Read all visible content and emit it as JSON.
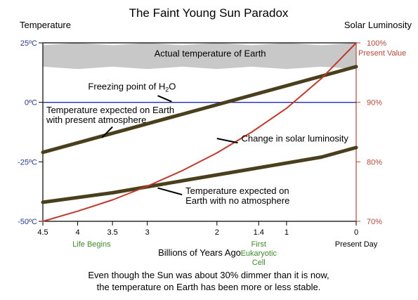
{
  "chart_data": {
    "type": "line",
    "title": "The Faint Young Sun Paradox",
    "ylabel_left": "Temperature",
    "ylabel_right": "Solar Luminosity",
    "xlabel": "Billions of Years Ago",
    "x_range": [
      4.5,
      0
    ],
    "y_left_range": [
      -50,
      25
    ],
    "y_right_range": [
      70,
      100
    ],
    "x_ticks": [
      {
        "value": 4.5,
        "label": "4.5"
      },
      {
        "value": 4,
        "label": "4"
      },
      {
        "value": 3.5,
        "label": "3.5"
      },
      {
        "value": 3,
        "label": "3"
      },
      {
        "value": 2,
        "label": "2"
      },
      {
        "value": 1.4,
        "label": "1.4"
      },
      {
        "value": 1,
        "label": "1"
      },
      {
        "value": 0,
        "label": "0"
      }
    ],
    "x_tick_extra": [
      {
        "value": 0,
        "label": "Present Day"
      }
    ],
    "y_left_ticks": [
      {
        "value": 25,
        "label": "25ºC"
      },
      {
        "value": 0,
        "label": "0ºC"
      },
      {
        "value": -25,
        "label": "-25ºC"
      },
      {
        "value": -50,
        "label": "-50ºC"
      }
    ],
    "y_right_ticks": [
      {
        "value": 100,
        "label": "100%"
      },
      {
        "value": 90,
        "label": "90%"
      },
      {
        "value": 80,
        "label": "80%"
      },
      {
        "value": 70,
        "label": "70%"
      }
    ],
    "right_axis_note": "Present Value",
    "milestones": [
      {
        "x": 3.8,
        "lines": [
          "Life Begins"
        ]
      },
      {
        "x": 1.4,
        "lines": [
          "First",
          "Eukaryotic",
          "Cell"
        ]
      }
    ],
    "freezing_line_value": 0,
    "actual_temp_band": {
      "label": "Actual temperature of Earth",
      "x": [
        4.5,
        4.0,
        3.5,
        3.0,
        2.5,
        2.0,
        1.5,
        1.0,
        0.5,
        0
      ],
      "upper": [
        24,
        25,
        24,
        25,
        24,
        25,
        24,
        25,
        24,
        25
      ],
      "lower": [
        15,
        14,
        15,
        14,
        15,
        14,
        15,
        14,
        15,
        14
      ]
    },
    "series": [
      {
        "name": "Temperature expected on Earth with present atmosphere",
        "axis": "left",
        "color": "#4a3f1c",
        "x": [
          4.5,
          0
        ],
        "y": [
          -21,
          15
        ]
      },
      {
        "name": "Temperature expected on Earth with no atmosphere",
        "axis": "left",
        "color": "#4a3f1c",
        "x": [
          4.5,
          3.5,
          2.5,
          1.5,
          0.5,
          0
        ],
        "y": [
          -42,
          -38,
          -33,
          -28,
          -23,
          -19
        ]
      },
      {
        "name": "Change in solar luminosity",
        "axis": "right",
        "color": "#c0392b",
        "x": [
          4.5,
          4.0,
          3.5,
          3.0,
          2.5,
          2.0,
          1.5,
          1.0,
          0.5,
          0
        ],
        "y": [
          70.0,
          71.7,
          73.6,
          75.9,
          78.5,
          81.5,
          85.0,
          89.0,
          94.0,
          100.0
        ]
      }
    ],
    "annotations": [
      {
        "id": "freezing",
        "text": "Freezing point of H",
        "sub": "2",
        "tail": "O"
      },
      {
        "id": "present",
        "lines": [
          "Temperature expected on Earth",
          "with present atmosphere"
        ]
      },
      {
        "id": "luminosity",
        "lines": [
          "Change in solar luminosity"
        ]
      },
      {
        "id": "noatmo",
        "lines": [
          "Temperature expected on",
          "Earth with no atmosphere"
        ]
      }
    ],
    "caption": [
      "Even though the Sun was about 30% dimmer than it is now,",
      "the temperature on Earth has been more or less stable."
    ],
    "colors": {
      "axis": "#000000",
      "freezing": "#1f2aa8",
      "band": "#c8c8c8",
      "right_axis": "#b24a3a",
      "milestone": "#3d8a2a"
    }
  }
}
